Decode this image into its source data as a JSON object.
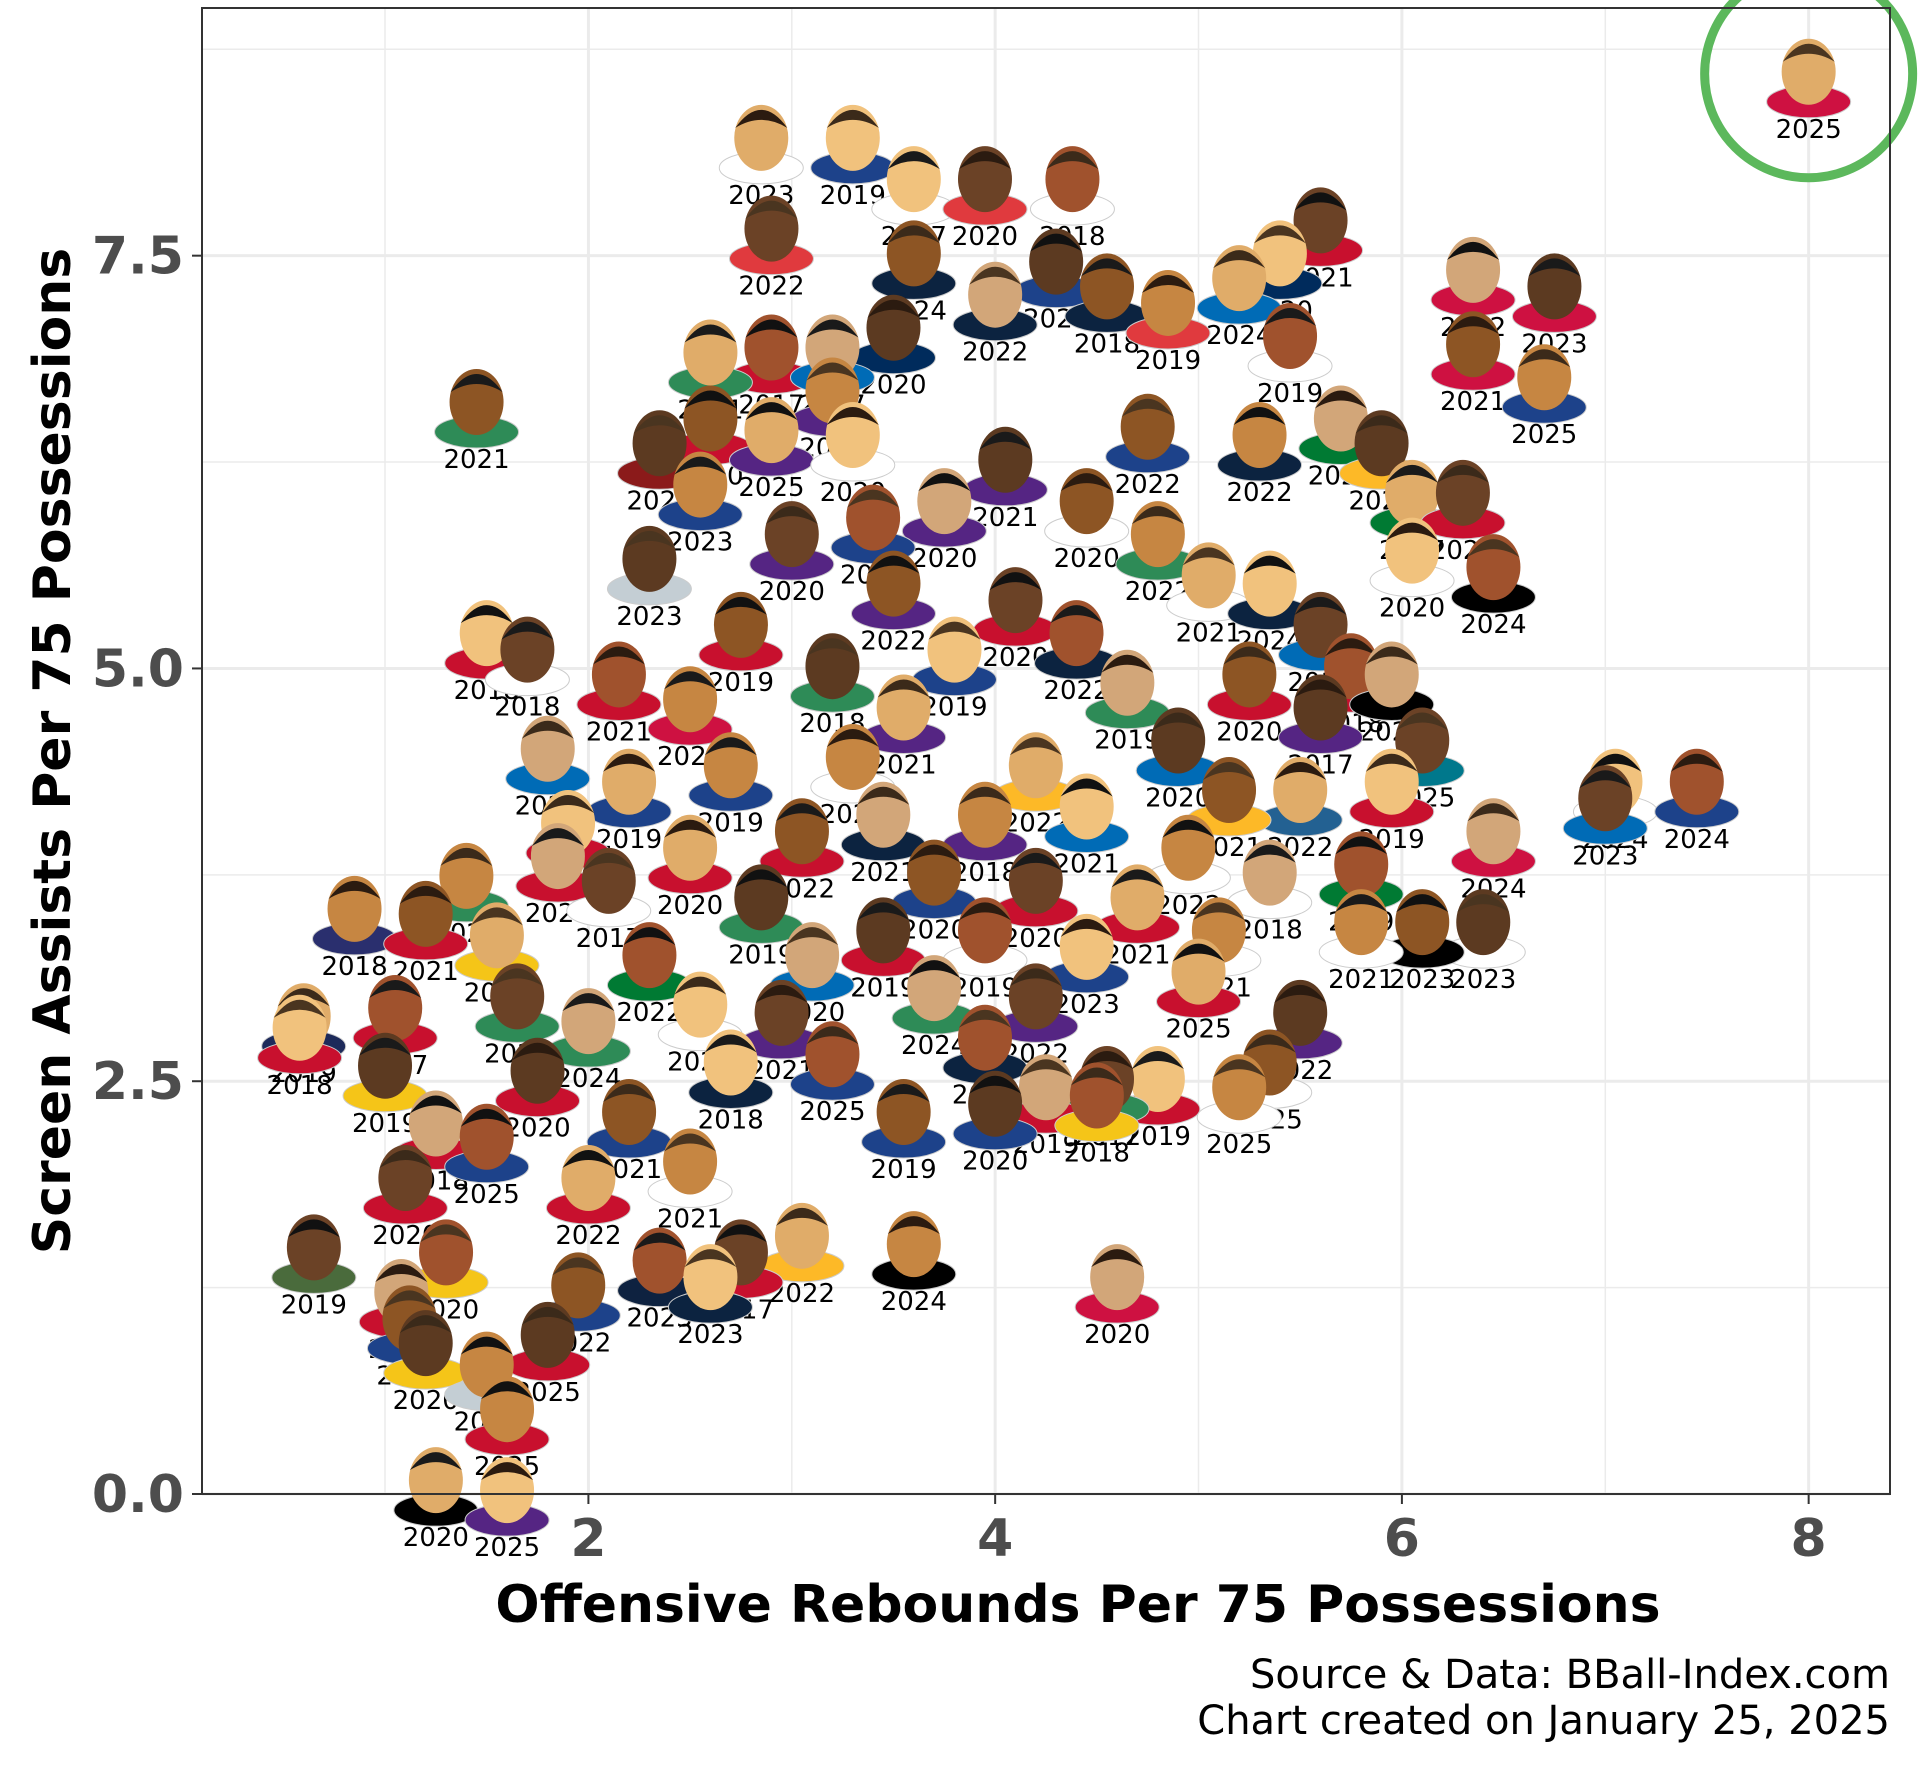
{
  "chart_data": {
    "type": "scatter",
    "title": "",
    "xlabel": "Offensive Rebounds Per 75 Possessions",
    "ylabel": "Screen Assists Per 75 Possessions",
    "xlim": [
      0.1,
      8.4
    ],
    "ylim": [
      0.0,
      9.0
    ],
    "xticks": [
      2,
      4,
      6,
      8
    ],
    "yticks": [
      0.0,
      2.5,
      5.0,
      7.5
    ],
    "xtick_labels": [
      "2",
      "4",
      "6",
      "8"
    ],
    "ytick_labels": [
      "0.0",
      "2.5",
      "5.0",
      "7.5"
    ],
    "grid": true,
    "legend": "none",
    "marker": "player-headshot",
    "highlight_color": "#5cb85c",
    "grid_color": "#ebebeb",
    "points": [
      {
        "x": 1.45,
        "y": 6.65,
        "label": "2021",
        "jersey": "#2e8b57"
      },
      {
        "x": 0.85,
        "y": 3.58,
        "label": "2018",
        "jersey": "#2a2f6e"
      },
      {
        "x": 0.6,
        "y": 2.93,
        "label": "2019",
        "jersey": "#1d2a5a"
      },
      {
        "x": 0.58,
        "y": 2.86,
        "label": "2018",
        "jersey": "#c8102e"
      },
      {
        "x": 0.65,
        "y": 1.53,
        "label": "2019",
        "jersey": "#4a6b3c"
      },
      {
        "x": 1.05,
        "y": 2.98,
        "label": "2017",
        "jersey": "#c8102e"
      },
      {
        "x": 1.08,
        "y": 1.26,
        "label": "2020",
        "jersey": "#c8102e"
      },
      {
        "x": 1.2,
        "y": 0.95,
        "label": "2020",
        "jersey": "#f5c518"
      },
      {
        "x": 1.12,
        "y": 1.1,
        "label": "2022",
        "jersey": "#1d428a"
      },
      {
        "x": 1.5,
        "y": 0.82,
        "label": "2025",
        "jersey": "#c4ced4"
      },
      {
        "x": 1.25,
        "y": 0.12,
        "label": "2020",
        "jersey": "#000000"
      },
      {
        "x": 1.6,
        "y": 0.06,
        "label": "2025",
        "jersey": "#552583"
      },
      {
        "x": 1.1,
        "y": 1.95,
        "label": "2020",
        "jersey": "#c8102e"
      },
      {
        "x": 1.3,
        "y": 1.5,
        "label": "2020",
        "jersey": "#f5c518"
      },
      {
        "x": 1.25,
        "y": 2.28,
        "label": "2018",
        "jersey": "#c8102e"
      },
      {
        "x": 1.0,
        "y": 2.63,
        "label": "2019",
        "jersey": "#f5c518"
      },
      {
        "x": 1.2,
        "y": 3.55,
        "label": "2021",
        "jersey": "#c8102e"
      },
      {
        "x": 1.4,
        "y": 3.78,
        "label": "2020",
        "jersey": "#2e8b57"
      },
      {
        "x": 1.55,
        "y": 3.42,
        "label": "2020",
        "jersey": "#f5c518"
      },
      {
        "x": 1.5,
        "y": 5.25,
        "label": "2018",
        "jersey": "#c8102e"
      },
      {
        "x": 1.7,
        "y": 5.15,
        "label": "2018",
        "jersey": "#ffffff"
      },
      {
        "x": 2.15,
        "y": 5.0,
        "label": "2021",
        "jersey": "#c8102e"
      },
      {
        "x": 1.8,
        "y": 4.55,
        "label": "2020",
        "jersey": "#006bb6"
      },
      {
        "x": 2.35,
        "y": 6.4,
        "label": "2022",
        "jersey": "#8b1a1a"
      },
      {
        "x": 2.6,
        "y": 6.55,
        "label": "2020",
        "jersey": "#c8102e"
      },
      {
        "x": 2.55,
        "y": 6.15,
        "label": "2023",
        "jersey": "#1d428a"
      },
      {
        "x": 2.85,
        "y": 8.25,
        "label": "2023",
        "jersey": "#ffffff"
      },
      {
        "x": 3.3,
        "y": 8.25,
        "label": "2019",
        "jersey": "#1d428a"
      },
      {
        "x": 2.9,
        "y": 7.7,
        "label": "2022",
        "jersey": "#e03a3e"
      },
      {
        "x": 2.9,
        "y": 6.98,
        "label": "2017",
        "jersey": "#c8102e"
      },
      {
        "x": 3.2,
        "y": 6.98,
        "label": "2017",
        "jersey": "#006bb6"
      },
      {
        "x": 3.5,
        "y": 7.1,
        "label": "2020",
        "jersey": "#002b5c"
      },
      {
        "x": 3.6,
        "y": 7.55,
        "label": "2024",
        "jersey": "#0c2340"
      },
      {
        "x": 3.2,
        "y": 6.72,
        "label": "2018",
        "jersey": "#552583"
      },
      {
        "x": 2.9,
        "y": 6.48,
        "label": "2025",
        "jersey": "#552583"
      },
      {
        "x": 3.6,
        "y": 8.0,
        "label": "2017",
        "jersey": "#ffffff"
      },
      {
        "x": 3.95,
        "y": 8.0,
        "label": "2020",
        "jersey": "#e03a3e"
      },
      {
        "x": 4.38,
        "y": 8.0,
        "label": "2018",
        "jersey": "#ffffff"
      },
      {
        "x": 4.0,
        "y": 7.3,
        "label": "2022",
        "jersey": "#0c2340"
      },
      {
        "x": 4.3,
        "y": 7.5,
        "label": "2021",
        "jersey": "#1d428a"
      },
      {
        "x": 4.55,
        "y": 7.35,
        "label": "2018",
        "jersey": "#0c2340"
      },
      {
        "x": 4.85,
        "y": 7.25,
        "label": "2019",
        "jersey": "#e03a3e"
      },
      {
        "x": 5.2,
        "y": 7.4,
        "label": "2024",
        "jersey": "#006bb6"
      },
      {
        "x": 5.4,
        "y": 7.55,
        "label": "2020",
        "jersey": "#002b5c"
      },
      {
        "x": 5.6,
        "y": 7.75,
        "label": "2021",
        "jersey": "#c8102e"
      },
      {
        "x": 5.45,
        "y": 7.05,
        "label": "2019",
        "jersey": "#ffffff"
      },
      {
        "x": 5.7,
        "y": 6.55,
        "label": "2022",
        "jersey": "#007a33"
      },
      {
        "x": 5.9,
        "y": 6.4,
        "label": "2021",
        "jersey": "#fdb927"
      },
      {
        "x": 4.75,
        "y": 6.5,
        "label": "2022",
        "jersey": "#1d428a"
      },
      {
        "x": 5.3,
        "y": 6.45,
        "label": "2022",
        "jersey": "#0c2340"
      },
      {
        "x": 6.05,
        "y": 6.1,
        "label": "2017",
        "jersey": "#007a33"
      },
      {
        "x": 6.05,
        "y": 5.75,
        "label": "2020",
        "jersey": "#ffffff"
      },
      {
        "x": 6.3,
        "y": 6.1,
        "label": "2023",
        "jersey": "#c8102e"
      },
      {
        "x": 6.45,
        "y": 5.65,
        "label": "2024",
        "jersey": "#000000"
      },
      {
        "x": 6.35,
        "y": 7.45,
        "label": "2022",
        "jersey": "#ce1141"
      },
      {
        "x": 6.75,
        "y": 7.35,
        "label": "2023",
        "jersey": "#ce1141"
      },
      {
        "x": 6.35,
        "y": 7.0,
        "label": "2021",
        "jersey": "#ce1141"
      },
      {
        "x": 6.7,
        "y": 6.8,
        "label": "2025",
        "jersey": "#1d428a"
      },
      {
        "x": 8.0,
        "y": 8.65,
        "label": "2025",
        "jersey": "#ce1141"
      },
      {
        "x": 7.05,
        "y": 4.35,
        "label": "2024",
        "jersey": "#ffffff"
      },
      {
        "x": 7.0,
        "y": 4.25,
        "label": "2023",
        "jersey": "#006bb6"
      },
      {
        "x": 7.45,
        "y": 4.35,
        "label": "2024",
        "jersey": "#1d428a"
      },
      {
        "x": 6.45,
        "y": 4.05,
        "label": "2024",
        "jersey": "#ce1141"
      },
      {
        "x": 6.4,
        "y": 3.5,
        "label": "2023",
        "jersey": "#ffffff"
      },
      {
        "x": 6.1,
        "y": 3.5,
        "label": "2023",
        "jersey": "#000000"
      },
      {
        "x": 5.8,
        "y": 3.5,
        "label": "2021",
        "jersey": "#ffffff"
      },
      {
        "x": 5.5,
        "y": 4.3,
        "label": "2022",
        "jersey": "#236192"
      },
      {
        "x": 5.95,
        "y": 4.35,
        "label": "2019",
        "jersey": "#c8102e"
      },
      {
        "x": 6.1,
        "y": 4.6,
        "label": "2025",
        "jersey": "#00788c"
      },
      {
        "x": 5.8,
        "y": 3.85,
        "label": "2019",
        "jersey": "#007a33"
      },
      {
        "x": 5.35,
        "y": 3.8,
        "label": "2018",
        "jersey": "#ffffff"
      },
      {
        "x": 5.5,
        "y": 2.95,
        "label": "2022",
        "jersey": "#552583"
      },
      {
        "x": 5.35,
        "y": 2.65,
        "label": "2025",
        "jersey": "#ffffff"
      },
      {
        "x": 5.2,
        "y": 2.5,
        "label": "2025",
        "jersey": "#ffffff"
      },
      {
        "x": 5.0,
        "y": 3.2,
        "label": "2025",
        "jersey": "#c8102e"
      },
      {
        "x": 4.8,
        "y": 2.55,
        "label": "2019",
        "jersey": "#c8102e"
      },
      {
        "x": 4.55,
        "y": 2.55,
        "label": "2017",
        "jersey": "#2e8b57"
      },
      {
        "x": 4.5,
        "y": 2.45,
        "label": "2018",
        "jersey": "#f5c518"
      },
      {
        "x": 4.25,
        "y": 2.5,
        "label": "2019",
        "jersey": "#c8102e"
      },
      {
        "x": 4.0,
        "y": 2.4,
        "label": "2020",
        "jersey": "#1d428a"
      },
      {
        "x": 3.55,
        "y": 2.35,
        "label": "2019",
        "jersey": "#1d428a"
      },
      {
        "x": 3.6,
        "y": 1.55,
        "label": "2024",
        "jersey": "#000000"
      },
      {
        "x": 3.05,
        "y": 1.6,
        "label": "2022",
        "jersey": "#fdb927"
      },
      {
        "x": 2.6,
        "y": 1.35,
        "label": "2023",
        "jersey": "#0c2340"
      },
      {
        "x": 2.75,
        "y": 1.5,
        "label": "2017",
        "jersey": "#c8102e"
      },
      {
        "x": 2.35,
        "y": 1.45,
        "label": "2023",
        "jersey": "#0e2240"
      },
      {
        "x": 4.6,
        "y": 1.35,
        "label": "2020",
        "jersey": "#ce1141"
      },
      {
        "x": 1.8,
        "y": 1.0,
        "label": "2025",
        "jersey": "#c8102e"
      },
      {
        "x": 1.95,
        "y": 1.3,
        "label": "2022",
        "jersey": "#1d428a"
      },
      {
        "x": 1.6,
        "y": 0.55,
        "label": "2025",
        "jersey": "#c8102e"
      },
      {
        "x": 2.6,
        "y": 6.95,
        "label": "2021",
        "jersey": "#2e8b57"
      },
      {
        "x": 3.3,
        "y": 6.45,
        "label": "2020",
        "jersey": "#ffffff"
      },
      {
        "x": 3.0,
        "y": 5.85,
        "label": "2020",
        "jersey": "#552583"
      },
      {
        "x": 3.4,
        "y": 5.95,
        "label": "2021",
        "jersey": "#1d428a"
      },
      {
        "x": 3.75,
        "y": 6.05,
        "label": "2020",
        "jersey": "#552583"
      },
      {
        "x": 4.05,
        "y": 6.3,
        "label": "2021",
        "jersey": "#552583"
      },
      {
        "x": 4.45,
        "y": 6.05,
        "label": "2020",
        "jersey": "#ffffff"
      },
      {
        "x": 4.8,
        "y": 5.85,
        "label": "2022",
        "jersey": "#2e8b57"
      },
      {
        "x": 5.05,
        "y": 5.6,
        "label": "2021",
        "jersey": "#ffffff"
      },
      {
        "x": 5.35,
        "y": 5.55,
        "label": "2024",
        "jersey": "#0c2340"
      },
      {
        "x": 5.6,
        "y": 5.3,
        "label": "2019",
        "jersey": "#006bb6"
      },
      {
        "x": 5.75,
        "y": 5.05,
        "label": "2018",
        "jersey": "#c8102e"
      },
      {
        "x": 5.95,
        "y": 5.0,
        "label": "2022",
        "jersey": "#000000"
      },
      {
        "x": 2.3,
        "y": 5.7,
        "label": "2023",
        "jersey": "#c4ced4"
      },
      {
        "x": 2.75,
        "y": 5.3,
        "label": "2019",
        "jersey": "#c8102e"
      },
      {
        "x": 2.5,
        "y": 4.85,
        "label": "2020",
        "jersey": "#ce1141"
      },
      {
        "x": 2.2,
        "y": 4.35,
        "label": "2019",
        "jersey": "#1d428a"
      },
      {
        "x": 1.9,
        "y": 4.1,
        "label": "2021",
        "jersey": "#c8102e"
      },
      {
        "x": 2.1,
        "y": 3.75,
        "label": "2017",
        "jersey": "#ffffff"
      },
      {
        "x": 2.3,
        "y": 3.3,
        "label": "2022",
        "jersey": "#007a33"
      },
      {
        "x": 2.0,
        "y": 2.9,
        "label": "2024",
        "jersey": "#2e8b57"
      },
      {
        "x": 1.75,
        "y": 2.6,
        "label": "2020",
        "jersey": "#c8102e"
      },
      {
        "x": 2.2,
        "y": 2.35,
        "label": "2021",
        "jersey": "#1d428a"
      },
      {
        "x": 2.5,
        "y": 2.05,
        "label": "2021",
        "jersey": "#ffffff"
      },
      {
        "x": 2.0,
        "y": 1.95,
        "label": "2022",
        "jersey": "#c8102e"
      },
      {
        "x": 2.7,
        "y": 2.65,
        "label": "2018",
        "jersey": "#0c2340"
      },
      {
        "x": 2.95,
        "y": 2.95,
        "label": "2021",
        "jersey": "#552583"
      },
      {
        "x": 3.2,
        "y": 2.7,
        "label": "2025",
        "jersey": "#1d428a"
      },
      {
        "x": 3.1,
        "y": 3.3,
        "label": "2020",
        "jersey": "#006bb6"
      },
      {
        "x": 2.85,
        "y": 3.65,
        "label": "2019",
        "jersey": "#2e8b57"
      },
      {
        "x": 3.05,
        "y": 4.05,
        "label": "2022",
        "jersey": "#c8102e"
      },
      {
        "x": 3.3,
        "y": 4.5,
        "label": "2020",
        "jersey": "#ffffff"
      },
      {
        "x": 3.55,
        "y": 4.8,
        "label": "2021",
        "jersey": "#552583"
      },
      {
        "x": 3.8,
        "y": 5.15,
        "label": "2019",
        "jersey": "#1d428a"
      },
      {
        "x": 4.1,
        "y": 5.45,
        "label": "2020",
        "jersey": "#c8102e"
      },
      {
        "x": 4.4,
        "y": 5.25,
        "label": "2022",
        "jersey": "#0c2340"
      },
      {
        "x": 4.65,
        "y": 4.95,
        "label": "2019",
        "jersey": "#2e8b57"
      },
      {
        "x": 4.9,
        "y": 4.6,
        "label": "2020",
        "jersey": "#006bb6"
      },
      {
        "x": 5.15,
        "y": 4.3,
        "label": "2021",
        "jersey": "#fdb927"
      },
      {
        "x": 4.95,
        "y": 3.95,
        "label": "2022",
        "jersey": "#ffffff"
      },
      {
        "x": 4.7,
        "y": 3.65,
        "label": "2021",
        "jersey": "#c8102e"
      },
      {
        "x": 4.45,
        "y": 3.35,
        "label": "2023",
        "jersey": "#1d428a"
      },
      {
        "x": 4.2,
        "y": 3.05,
        "label": "2022",
        "jersey": "#552583"
      },
      {
        "x": 3.95,
        "y": 2.8,
        "label": "2021",
        "jersey": "#0c2340"
      },
      {
        "x": 3.7,
        "y": 3.1,
        "label": "2024",
        "jersey": "#2e8b57"
      },
      {
        "x": 3.45,
        "y": 3.45,
        "label": "2019",
        "jersey": "#c8102e"
      },
      {
        "x": 3.7,
        "y": 3.8,
        "label": "2020",
        "jersey": "#1d428a"
      },
      {
        "x": 3.95,
        "y": 4.15,
        "label": "2018",
        "jersey": "#552583"
      },
      {
        "x": 4.2,
        "y": 4.45,
        "label": "2022",
        "jersey": "#fdb927"
      },
      {
        "x": 4.45,
        "y": 4.2,
        "label": "2021",
        "jersey": "#006bb6"
      },
      {
        "x": 4.2,
        "y": 3.75,
        "label": "2020",
        "jersey": "#c8102e"
      },
      {
        "x": 3.95,
        "y": 3.45,
        "label": "2019",
        "jersey": "#ffffff"
      },
      {
        "x": 3.45,
        "y": 4.15,
        "label": "2021",
        "jersey": "#0c2340"
      },
      {
        "x": 3.2,
        "y": 5.05,
        "label": "2018",
        "jersey": "#2e8b57"
      },
      {
        "x": 3.5,
        "y": 5.55,
        "label": "2022",
        "jersey": "#552583"
      },
      {
        "x": 2.7,
        "y": 4.45,
        "label": "2019",
        "jersey": "#1d428a"
      },
      {
        "x": 2.5,
        "y": 3.95,
        "label": "2020",
        "jersey": "#c8102e"
      },
      {
        "x": 2.55,
        "y": 3.0,
        "label": "2023",
        "jersey": "#ffffff"
      },
      {
        "x": 1.65,
        "y": 3.05,
        "label": "2024",
        "jersey": "#2e8b57"
      },
      {
        "x": 1.5,
        "y": 2.2,
        "label": "2025",
        "jersey": "#1d428a"
      },
      {
        "x": 1.85,
        "y": 3.9,
        "label": "2023",
        "jersey": "#c8102e"
      },
      {
        "x": 5.6,
        "y": 4.8,
        "label": "2017",
        "jersey": "#552583"
      },
      {
        "x": 5.25,
        "y": 5.0,
        "label": "2020",
        "jersey": "#c8102e"
      },
      {
        "x": 5.1,
        "y": 3.45,
        "label": "2021",
        "jersey": "#ffffff"
      }
    ]
  },
  "caption": {
    "line1": "Source & Data: BBall-Index.com",
    "line2": "Chart created on January 25, 2025"
  }
}
